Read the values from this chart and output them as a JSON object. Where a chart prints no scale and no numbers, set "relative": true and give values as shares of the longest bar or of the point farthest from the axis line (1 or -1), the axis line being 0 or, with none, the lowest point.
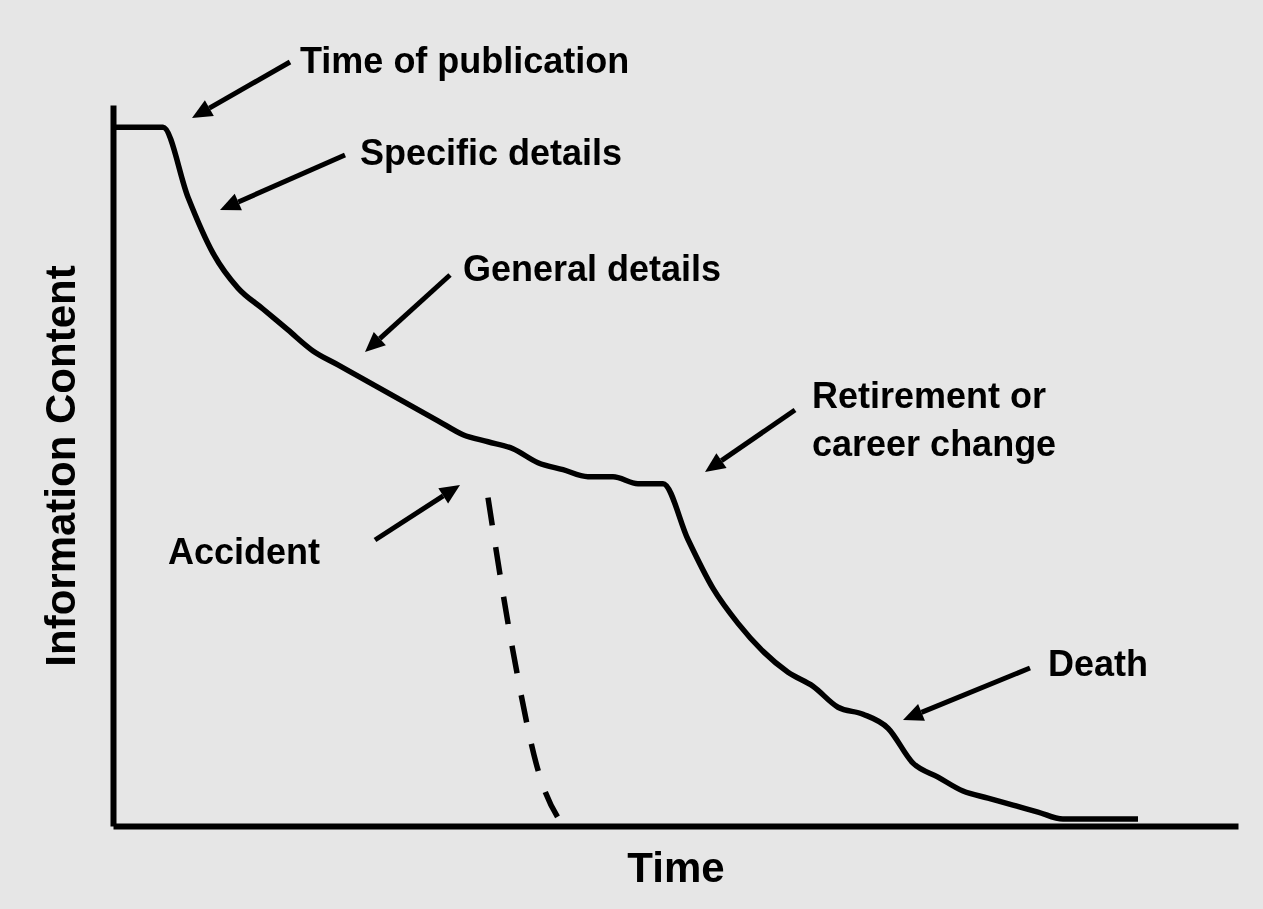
{
  "chart_data": {
    "type": "line",
    "relative": true,
    "xlabel": "Time",
    "ylabel": "Information Content",
    "categories": [
      null,
      null,
      null,
      null,
      null,
      null,
      null,
      null,
      null,
      null,
      null,
      null,
      null,
      null,
      null,
      null,
      null,
      null,
      null,
      null,
      null,
      null,
      null,
      null,
      null,
      null,
      null,
      null,
      null,
      null,
      null,
      null,
      null,
      null,
      null,
      null,
      null,
      null,
      null,
      null,
      null,
      null,
      null,
      null,
      null,
      null
    ],
    "series": [
      {
        "color": "#000000",
        "line_style": "solid",
        "values": [
          1.0,
          1.0,
          1.0,
          0.9,
          0.82,
          0.77,
          0.74,
          0.71,
          0.68,
          0.66,
          0.64,
          0.62,
          0.6,
          0.58,
          0.56,
          0.55,
          0.54,
          0.52,
          0.51,
          0.5,
          0.5,
          0.49,
          0.49,
          0.41,
          0.34,
          0.29,
          0.25,
          0.22,
          0.2,
          0.17,
          0.16,
          0.14,
          0.09,
          0.07,
          0.05,
          0.04,
          0.03,
          0.02,
          0.01,
          0.01,
          0.01,
          0.01,
          null,
          null,
          null,
          null
        ]
      },
      {
        "color": "#000000",
        "line_style": "dashed",
        "values": [
          null,
          null,
          null,
          null,
          null,
          null,
          null,
          null,
          null,
          null,
          null,
          null,
          null,
          null,
          null,
          0.47,
          0.25,
          0.08,
          0.0,
          null,
          null,
          null,
          null,
          null,
          null,
          null,
          null,
          null,
          null,
          null,
          null,
          null,
          null,
          null,
          null,
          null,
          null,
          null,
          null,
          null,
          null,
          null,
          null,
          null,
          null,
          null
        ]
      }
    ],
    "annotations": [
      "Time of publication",
      "Specific details",
      "General details",
      "Retirement or\ncareer change",
      "Accident",
      "Death"
    ],
    "marker": "none"
  }
}
